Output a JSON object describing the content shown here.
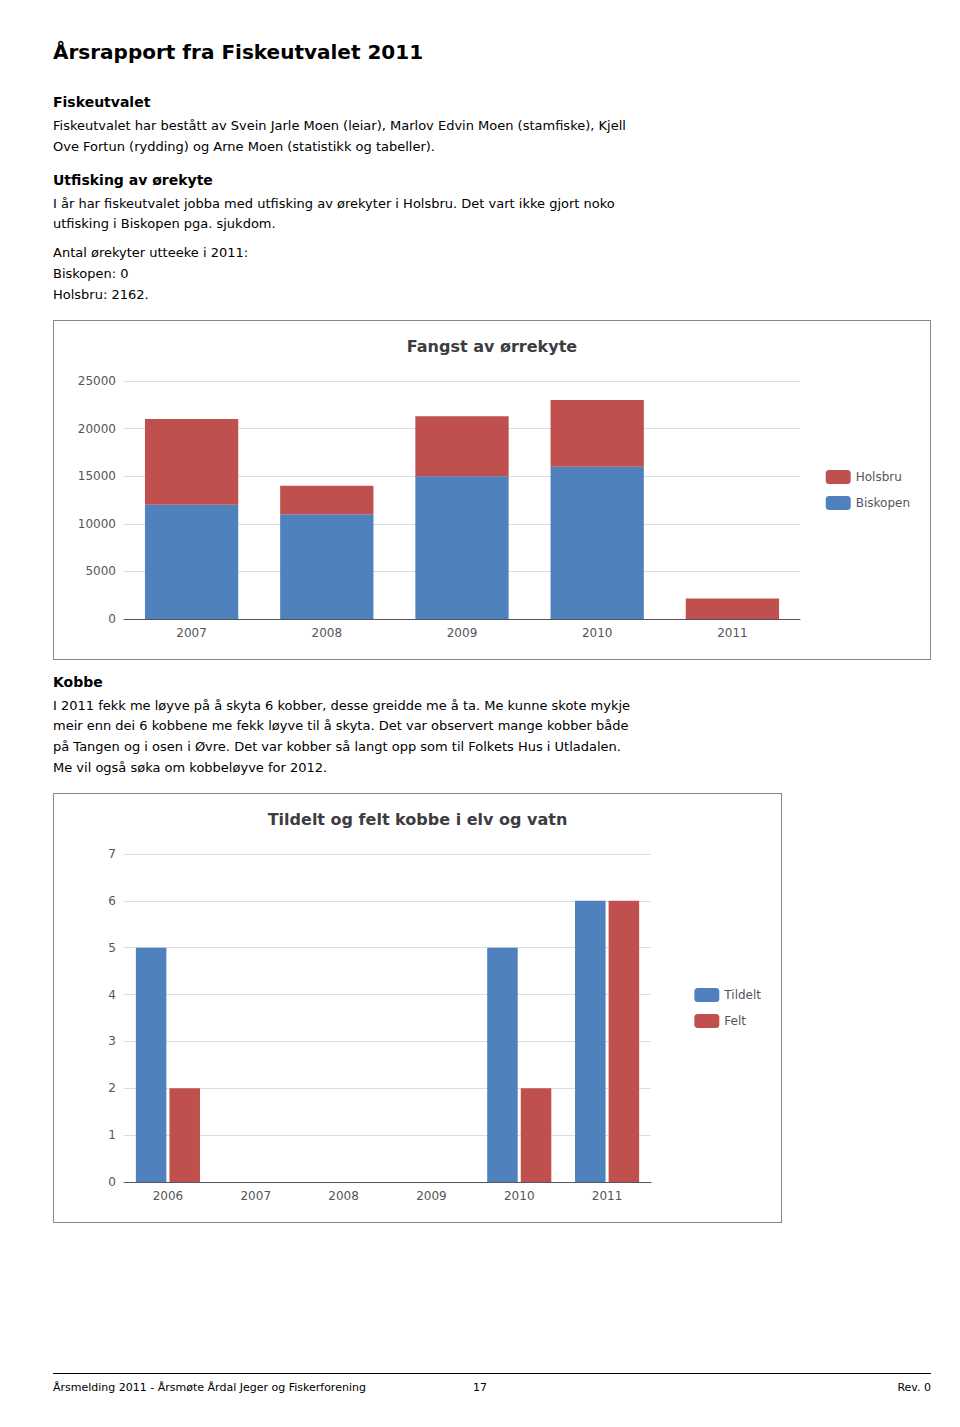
{
  "page_title": "Årsrapport fra Fiskeutvalet 2011",
  "sections": [
    {
      "title": "Fiskeutvalet",
      "body": [
        "Fiskeutvalet har bestått av Svein Jarle Moen (leiar), Marlov Edvin Moen (stamfiske), Kjell\nOve Fortun (rydding) og Arne Moen (statistikk og tabeller)."
      ]
    },
    {
      "title": "Utfisking av ørekyte",
      "body": [
        "I år har fiskeutvalet jobba med utfisking av ørekyter i Holsbru. Det vart ikke gjort noko\nutfisking i Biskopen pga. sjukdom.",
        "Antal ørekyter utteeke i 2011:\nBiskopen: 0\nHolsbru: 2162."
      ]
    },
    {
      "title": "Kobbe",
      "body": [
        "I 2011 fekk me løyve på å skyta 6 kobber, desse greidde me å ta. Me kunne skote mykje\nmeir enn dei 6 kobbene me fekk løyve til å skyta. Det var observert mange kobber både\npå Tangen og i osen i Øvre. Det var kobber så langt opp som til Folkets Hus i Utladalen.\nMe vil også søka om kobbeløyve for 2012."
      ]
    }
  ],
  "chart_data": [
    {
      "type": "bar",
      "title": "Fangst av ørrekyte",
      "categories": [
        "2007",
        "2008",
        "2009",
        "2010",
        "2011"
      ],
      "series": [
        {
          "name": "Biskopen",
          "color": "#4F81BD",
          "values": [
            12000,
            11000,
            15000,
            16000,
            0
          ]
        },
        {
          "name": "Holsbru",
          "color": "#C0504D",
          "values": [
            9000,
            3000,
            6300,
            7000,
            2162
          ]
        }
      ],
      "stacked": true,
      "ylim": [
        0,
        25000
      ],
      "yticks": [
        0,
        5000,
        10000,
        15000,
        20000,
        25000
      ],
      "grid": true,
      "legend": "right"
    },
    {
      "type": "bar",
      "title": "Tildelt og felt kobbe i elv og vatn",
      "categories": [
        "2006",
        "2007",
        "2008",
        "2009",
        "2010",
        "2011"
      ],
      "series": [
        {
          "name": "Tildelt",
          "color": "#4F81BD",
          "values": [
            5,
            0,
            0,
            0,
            5,
            6
          ]
        },
        {
          "name": "Felt",
          "color": "#C0504D",
          "values": [
            2,
            0,
            0,
            0,
            2,
            6
          ]
        }
      ],
      "ylim": [
        0,
        7
      ],
      "yticks": [
        0,
        1,
        2,
        3,
        4,
        5,
        6,
        7
      ],
      "grid": true,
      "legend": "right"
    }
  ],
  "footer": {
    "left": "Årsmelding 2011 - Årsmøte Årdal Jeger og Fiskerforening",
    "center": "17",
    "right": "Rev. 0"
  }
}
